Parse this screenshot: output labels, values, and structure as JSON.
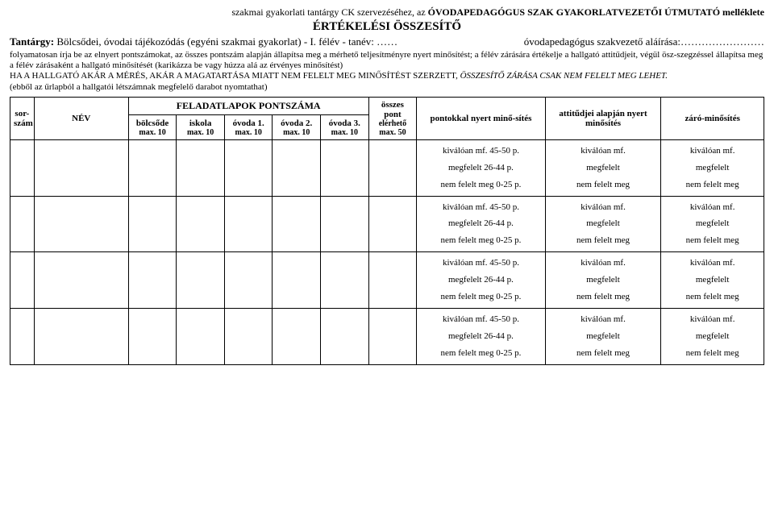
{
  "header": {
    "prefix": "szakmai gyakorlati tantárgy CK szervezéséhez, az ",
    "bold": "ÓVODAPEDAGÓGUS SZAK GYAKORLATVEZETŐI ÚTMUTATÓ melléklete"
  },
  "title": "ÉRTÉKELÉSI ÖSSZESÍTŐ",
  "subject": {
    "label": "Tantárgy: ",
    "value": "Bölcsődei, óvodai tájékozódás (egyéni szakmai gyakorlat) - I. félév - tanév: ……",
    "signature": "óvodapedagógus szakvezető aláírása:……………………"
  },
  "para1": "folyamatosan írja be az elnyert pontszámokat, az összes pontszám alapján állapítsa meg a mérhető teljesítményre nyert minősítést; a félév zárására értékelje a hallgató attitűdjeit, végül ösz-szegzéssel állapítsa meg a félév zárásaként a hallgató minősítését (karikázza be vagy húzza alá az érvényes minősítést)",
  "para2_plain": "HA A HALLGATÓ AKÁR A MÉRÉS, AKÁR A MAGATARTÁSA MIATT NEM FELELT MEG MINŐSÍTÉST SZERZETT, ",
  "para2_italic": "ÖSSZESÍTŐ ZÁRÁSA CSAK NEM FELELT MEG LEHET.",
  "note": "(ebből az űrlapból a hallgatói létszámnak megfelelő darabot nyomtathat)",
  "table": {
    "headers": {
      "sorszam": "sor-szám",
      "nev": "NÉV",
      "feladat_title": "FELADATLAPOK PONTSZÁMA",
      "ossz_top": "összes pont",
      "ossz_sub": "elérhető max. 50",
      "pontok": "pontokkal nyert minő-sítés",
      "attitud": "attitűdjei alapján nyert minősítés",
      "zaro": "záró-minősítés",
      "sub": [
        {
          "t": "bölcsőde",
          "m": "max. 10"
        },
        {
          "t": "iskola",
          "m": "max. 10"
        },
        {
          "t": "óvoda 1.",
          "m": "max. 10"
        },
        {
          "t": "óvoda 2.",
          "m": "max. 10"
        },
        {
          "t": "óvoda 3.",
          "m": "max. 10"
        }
      ]
    },
    "cell_pontok": {
      "l1": "kiválóan mf. 45-50 p.",
      "l2": "megfelelt 26-44 p.",
      "l3": "nem felelt meg 0-25 p."
    },
    "cell_att": {
      "l1": "kiválóan mf.",
      "l2": "megfelelt",
      "l3": "nem felelt meg"
    },
    "cell_zaro": {
      "l1": "kiválóan mf.",
      "l2": "megfelelt",
      "l3": "nem felelt meg"
    }
  }
}
